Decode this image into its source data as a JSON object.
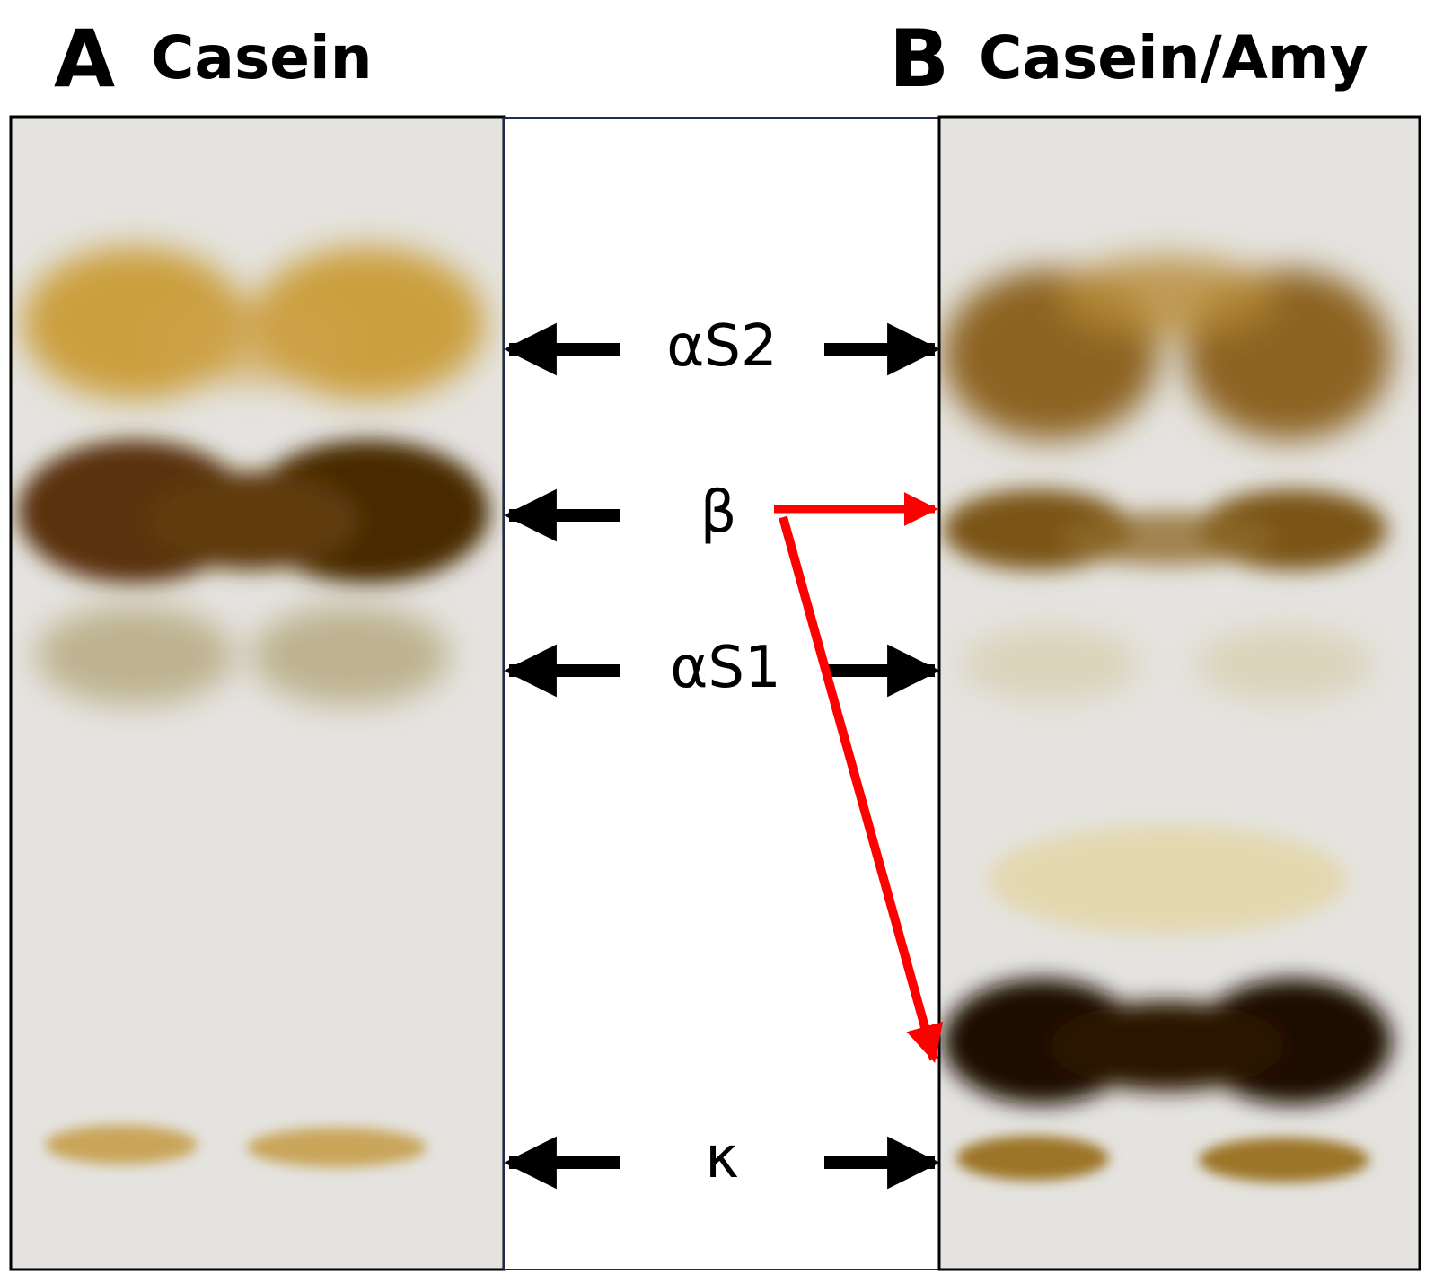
{
  "panels": [
    {
      "letter": "A",
      "title": "Casein"
    },
    {
      "letter": "B",
      "title": "Casein/Amy"
    }
  ],
  "bands": [
    {
      "label": "αS2"
    },
    {
      "label": "β"
    },
    {
      "label": "αS1"
    },
    {
      "label": "κ"
    }
  ],
  "colors": {
    "gel_background": "#e4e3df",
    "arrow_black": "#000000",
    "arrow_red": "#ff0000",
    "center_border": "#1f2a55"
  }
}
